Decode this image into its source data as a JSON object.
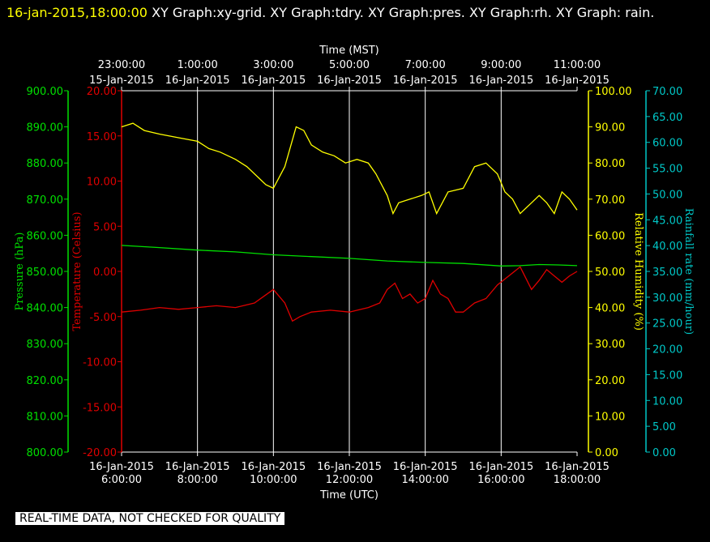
{
  "header": {
    "timestamp": "16-jan-2015,18:00:00",
    "titles": "XY Graph:xy-grid.  XY Graph:tdry.  XY Graph:pres.  XY Graph:rh.  XY Graph: rain."
  },
  "footer": {
    "notice": "REAL-TIME DATA, NOT CHECKED FOR QUALITY"
  },
  "colors": {
    "pressure": "#00e000",
    "temperature": "#e00000",
    "humidity": "#ffff00",
    "rain": "#00c8c8",
    "grid": "#ffffff",
    "axis_text": "#ffffff"
  },
  "chart_data": {
    "type": "line",
    "grid": true,
    "x_top": {
      "title": "Time (MST)",
      "ticks": [
        {
          "time": "23:00:00",
          "date": "15-Jan-2015"
        },
        {
          "time": "1:00:00",
          "date": "16-Jan-2015"
        },
        {
          "time": "3:00:00",
          "date": "16-Jan-2015"
        },
        {
          "time": "5:00:00",
          "date": "16-Jan-2015"
        },
        {
          "time": "7:00:00",
          "date": "16-Jan-2015"
        },
        {
          "time": "9:00:00",
          "date": "16-Jan-2015"
        },
        {
          "time": "11:00:00",
          "date": "16-Jan-2015"
        }
      ]
    },
    "x_bottom": {
      "title": "Time (UTC)",
      "range_hours": [
        6,
        18
      ],
      "ticks": [
        {
          "date": "16-Jan-2015",
          "time": "6:00:00"
        },
        {
          "date": "16-Jan-2015",
          "time": "8:00:00"
        },
        {
          "date": "16-Jan-2015",
          "time": "10:00:00"
        },
        {
          "date": "16-Jan-2015",
          "time": "12:00:00"
        },
        {
          "date": "16-Jan-2015",
          "time": "14:00:00"
        },
        {
          "date": "16-Jan-2015",
          "time": "16:00:00"
        },
        {
          "date": "16-Jan-2015",
          "time": "18:00:00"
        }
      ]
    },
    "axes": {
      "pressure": {
        "label": "Pressure (hPa)",
        "range": [
          800,
          900
        ],
        "ticks": [
          "900.00",
          "890.00",
          "880.00",
          "870.00",
          "860.00",
          "850.00",
          "840.00",
          "830.00",
          "820.00",
          "810.00",
          "800.00"
        ]
      },
      "temperature": {
        "label": "Temperature (Celsius)",
        "range": [
          -20,
          20
        ],
        "ticks": [
          "20.00",
          "15.00",
          "10.00",
          "5.00",
          "0.00",
          "-5.00",
          "-10.00",
          "-15.00",
          "-20.00"
        ]
      },
      "humidity": {
        "label": "Relative Humidity (%)",
        "range": [
          0,
          100
        ],
        "ticks": [
          "100.00",
          "90.00",
          "80.00",
          "70.00",
          "60.00",
          "50.00",
          "40.00",
          "30.00",
          "20.00",
          "10.00",
          "0.00"
        ]
      },
      "rain": {
        "label": "Rainfall rate (mm/hour)",
        "range": [
          0,
          70
        ],
        "ticks": [
          "70.00",
          "65.00",
          "60.00",
          "55.00",
          "50.00",
          "45.00",
          "40.00",
          "35.00",
          "30.00",
          "25.00",
          "20.00",
          "15.00",
          "10.00",
          "5.00",
          "0.00"
        ]
      }
    },
    "series": [
      {
        "axis": "humidity",
        "x": [
          6.0,
          6.3,
          6.6,
          7.0,
          7.5,
          8.0,
          8.3,
          8.6,
          9.0,
          9.3,
          9.6,
          9.8,
          10.0,
          10.3,
          10.6,
          10.8,
          11.0,
          11.3,
          11.6,
          11.9,
          12.2,
          12.5,
          12.7,
          13.0,
          13.15,
          13.3,
          13.6,
          13.9,
          14.1,
          14.3,
          14.4,
          14.6,
          15.0,
          15.3,
          15.6,
          15.9,
          16.1,
          16.3,
          16.5,
          16.8,
          17.0,
          17.2,
          17.4,
          17.6,
          17.8,
          18.0
        ],
        "y": [
          90,
          91,
          89,
          88,
          87,
          86,
          84,
          83,
          81,
          79,
          76,
          74,
          73,
          79,
          90,
          89,
          85,
          83,
          82,
          80,
          81,
          80,
          77,
          71,
          66,
          69,
          70,
          71,
          72,
          66,
          68,
          72,
          73,
          79,
          80,
          77,
          72,
          70,
          66,
          69,
          71,
          69,
          66,
          72,
          70,
          67
        ]
      },
      {
        "axis": "pressure",
        "x": [
          6.0,
          7.0,
          8.0,
          9.0,
          10.0,
          11.0,
          12.0,
          13.0,
          14.0,
          15.0,
          16.0,
          16.5,
          17.0,
          17.5,
          18.0
        ],
        "y": [
          857.2,
          856.6,
          855.9,
          855.4,
          854.6,
          854.1,
          853.6,
          852.9,
          852.5,
          852.2,
          851.5,
          851.6,
          851.9,
          851.8,
          851.6
        ]
      },
      {
        "axis": "temperature",
        "x": [
          6.0,
          6.5,
          7.0,
          7.5,
          8.0,
          8.5,
          9.0,
          9.5,
          10.0,
          10.3,
          10.5,
          10.7,
          11.0,
          11.5,
          12.0,
          12.5,
          12.8,
          13.0,
          13.2,
          13.4,
          13.6,
          13.8,
          14.0,
          14.2,
          14.4,
          14.6,
          14.8,
          15.0,
          15.3,
          15.6,
          15.9,
          16.2,
          16.5,
          16.8,
          17.0,
          17.2,
          17.4,
          17.6,
          17.8,
          18.0
        ],
        "y": [
          -4.5,
          -4.3,
          -4.0,
          -4.2,
          -4.0,
          -3.8,
          -4.0,
          -3.5,
          -2.0,
          -3.5,
          -5.5,
          -5.0,
          -4.5,
          -4.3,
          -4.5,
          -4.0,
          -3.5,
          -2.0,
          -1.3,
          -3.0,
          -2.5,
          -3.5,
          -3.0,
          -1.0,
          -2.5,
          -3.0,
          -4.5,
          -4.5,
          -3.5,
          -3.0,
          -1.5,
          -0.5,
          0.5,
          -2.0,
          -1.0,
          0.2,
          -0.5,
          -1.2,
          -0.5,
          0.0
        ]
      }
    ]
  }
}
